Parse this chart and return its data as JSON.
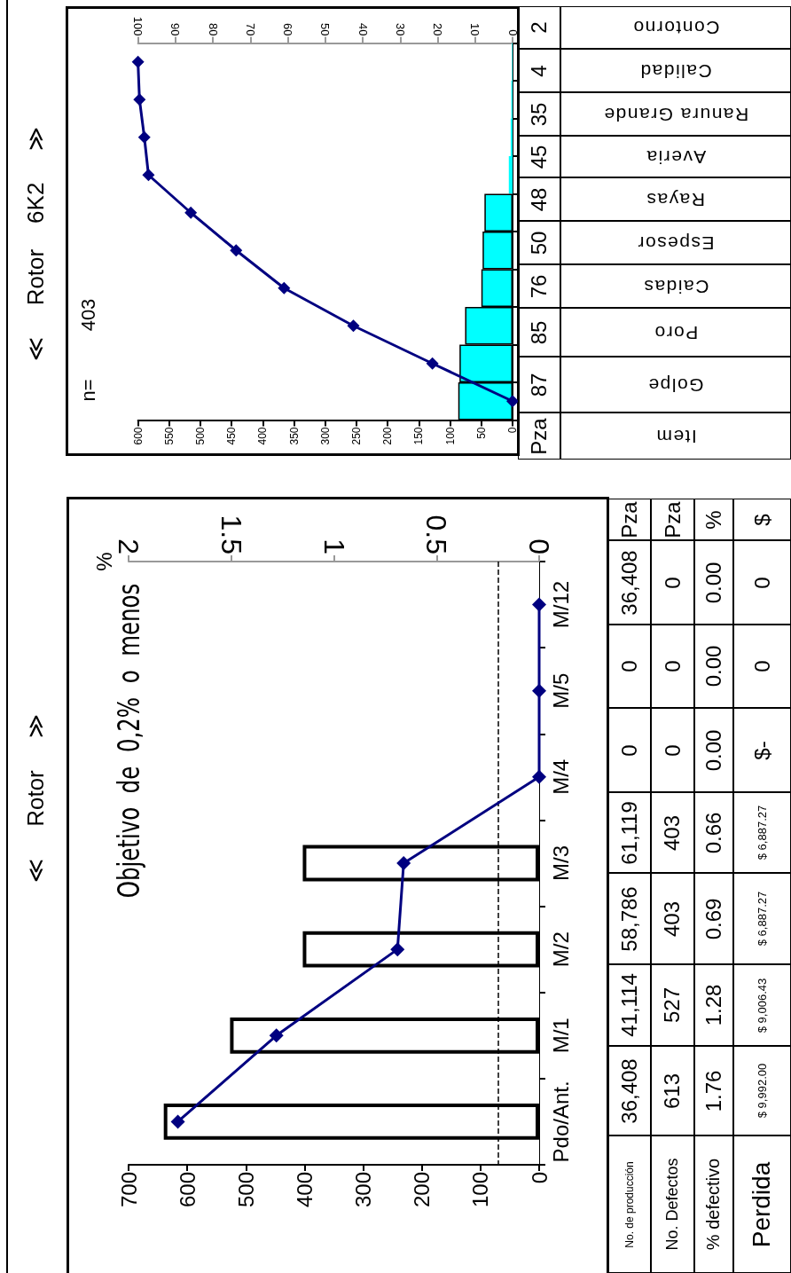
{
  "chart_data": [
    {
      "type": "bar",
      "orientation": "horizontal",
      "title": "≪     Rotor     ≫",
      "categories": [
        "M/12",
        "M/5",
        "M/4",
        "M/3",
        "M/2",
        "M/1",
        "Pdo/Ant."
      ],
      "series": [
        {
          "color": "#ffffff",
          "values": [
            null,
            null,
            null,
            403,
            403,
            527,
            640
          ]
        },
        {
          "type": "line",
          "axis": "x2",
          "color": "#000080",
          "values": [
            0,
            0,
            0,
            0.66,
            0.69,
            1.28,
            1.76
          ]
        }
      ],
      "xlim": [
        700,
        0
      ],
      "xticks": [
        700,
        600,
        500,
        400,
        300,
        200,
        100,
        0
      ],
      "x2lim": [
        2,
        0
      ],
      "x2ticks": [
        2,
        1.5,
        1,
        0.5,
        0
      ],
      "x2label": "%",
      "marker": "diamond",
      "ref_lines": [
        {
          "axis": "x2",
          "value": 0.2,
          "color": "#000000",
          "line_style": "dashed"
        }
      ],
      "annotations": [
        "Objetivo  de  0,2%  o  menos",
        "No. de producción",
        "36,408",
        "41,114",
        "58,786",
        "61,119",
        "0",
        "0",
        "36,408",
        "Pza",
        "No. Defectos",
        "613",
        "527",
        "403",
        "403",
        "0",
        "0",
        "0",
        "Pza",
        "% defectivo",
        "1.76",
        "1.28",
        "0.69",
        "0.66",
        "0.00",
        "0.00",
        "0.00",
        "%",
        "Perdida",
        "$ 9,992.00",
        "$ 9,006.43",
        "$ 6,887.27",
        "$ 6,887.27",
        "$-",
        "0",
        "0",
        "$"
      ]
    },
    {
      "type": "bar",
      "orientation": "horizontal",
      "title": "≪     Rotor    6K2     ≫",
      "categories": [
        null,
        null,
        null,
        null,
        null,
        null,
        null,
        null,
        null,
        null
      ],
      "series": [
        {
          "color": "#00ffff",
          "values": [
            1,
            2,
            3,
            6,
            45,
            48,
            50,
            76,
            85,
            87
          ]
        },
        {
          "type": "line",
          "axis": "x2",
          "color": "#000080",
          "values": [
            100,
            99.6,
            98.3,
            97.2,
            85.9,
            73.8,
            61,
            42.5,
            21.4,
            0
          ]
        }
      ],
      "xlim": [
        600,
        0
      ],
      "xticks": [
        600,
        550,
        500,
        450,
        400,
        350,
        300,
        250,
        200,
        150,
        100,
        50,
        0
      ],
      "x2lim": [
        100,
        0
      ],
      "x2ticks": [
        100,
        90,
        80,
        70,
        60,
        50,
        40,
        30,
        20,
        10,
        0
      ],
      "marker": "diamond",
      "annotations": [
        "n=",
        "403",
        "Pza",
        "87",
        "85",
        "76",
        "50",
        "48",
        "45",
        "35",
        "4",
        "2",
        "Item",
        "Golpe",
        "Poro",
        "Caidas",
        "Espesor",
        "Rayas",
        "Averia",
        "Ranura Grande",
        "Calidad",
        "Contorno"
      ]
    }
  ]
}
